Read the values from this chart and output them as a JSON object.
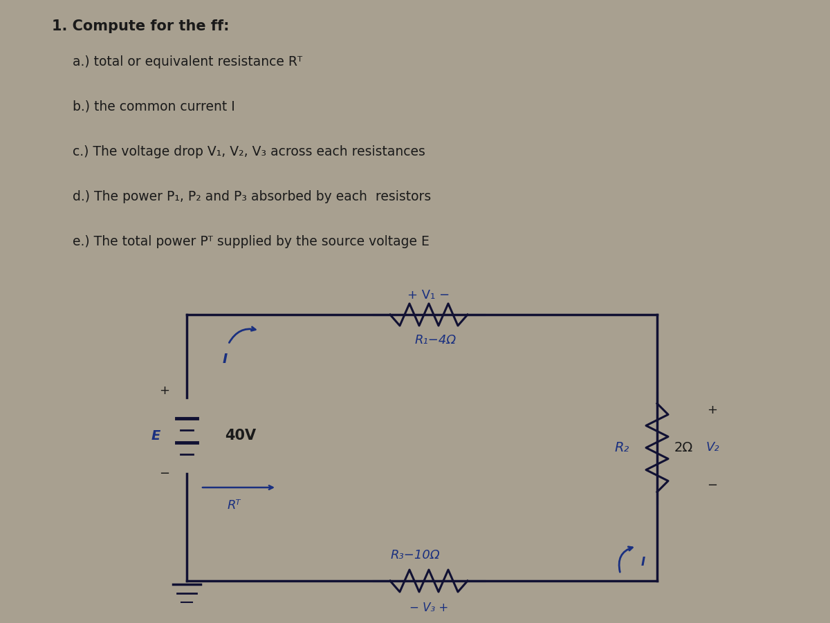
{
  "bg_color": "#a8a090",
  "text_color": "#1a1a1a",
  "blue_color": "#1a3080",
  "dark_color": "#111133",
  "title_line": "1. Compute for the ff:",
  "items": [
    "a.) total or equivalent resistance Rᵀ",
    "b.) the common current I",
    "c.) The voltage drop V₁, V₂, V₃ across each resistances",
    "d.) The power P₁, P₂ and P₃ absorbed by each  resistors",
    "e.) The total power Pᵀ supplied by the source voltage E"
  ],
  "r1_label": "R₁−4Ω",
  "r2_label": "R₂",
  "r2_val": "2Ω",
  "r3_label": "R₃−10Ω",
  "e_label": "E",
  "v_label": "40V",
  "rt_label": "Rᵀ",
  "v1_label": "+ V₁ −",
  "v2_label": "V₂",
  "v3_label": "− V₃ +",
  "current_label": "I"
}
